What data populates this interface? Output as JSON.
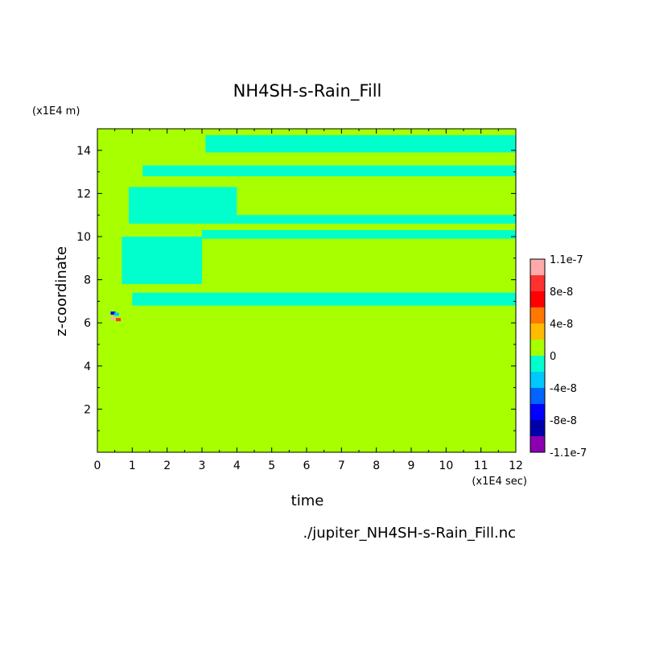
{
  "chart_data": {
    "type": "heatmap",
    "title": "NH4SH-s-Rain_Fill",
    "xlabel": "time",
    "ylabel": "z-coordinate",
    "x_unit": "(x1E4 sec)",
    "y_unit": "(x1E4 m)",
    "footer": "./jupiter_NH4SH-s-Rain_Fill.nc",
    "xlim": [
      0,
      12
    ],
    "ylim": [
      0,
      15
    ],
    "x_ticks": [
      "0",
      "1",
      "2",
      "3",
      "4",
      "5",
      "6",
      "7",
      "8",
      "9",
      "10",
      "11",
      "12"
    ],
    "y_ticks": [
      "2",
      "4",
      "6",
      "8",
      "10",
      "12",
      "14"
    ],
    "background_level_color": "#a8ff00",
    "negative_band_color": "#00ffcc",
    "colorbar": {
      "labels": [
        "1.1e-7",
        "8e-8",
        "4e-8",
        "0",
        "-4e-8",
        "-8e-8",
        "-1.1e-7"
      ],
      "colors": [
        "#ffaaaa",
        "#ff3030",
        "#ff0000",
        "#ff7700",
        "#ffbb00",
        "#a8ff00",
        "#00ffcc",
        "#00c8ff",
        "#0064ff",
        "#0000ff",
        "#0000aa",
        "#8a00b0"
      ]
    },
    "negative_bands": [
      {
        "z_range": [
          13.9,
          14.7
        ],
        "t_range": [
          3.1,
          12
        ]
      },
      {
        "z_range": [
          12.8,
          13.3
        ],
        "t_range": [
          1.3,
          12
        ]
      },
      {
        "z_range": [
          10.6,
          12.3
        ],
        "t_range": [
          0.9,
          4.0
        ]
      },
      {
        "z_range": [
          10.6,
          11.0
        ],
        "t_range": [
          4.0,
          12
        ]
      },
      {
        "z_range": [
          9.9,
          10.3
        ],
        "t_range": [
          3.0,
          12
        ]
      },
      {
        "z_range": [
          7.8,
          10.0
        ],
        "t_range": [
          0.7,
          3.0
        ]
      },
      {
        "z_range": [
          6.8,
          7.4
        ],
        "t_range": [
          1.0,
          12
        ]
      }
    ],
    "positive_spots": [
      {
        "t": 0.45,
        "z": 6.2,
        "value": 1.1e-07
      },
      {
        "t": 0.6,
        "z": 6.15,
        "value": 8e-08
      }
    ],
    "negative_spots": [
      {
        "t": 0.45,
        "z": 6.45,
        "value": -8e-08
      },
      {
        "t": 0.55,
        "z": 6.4,
        "value": -4e-08
      }
    ]
  }
}
